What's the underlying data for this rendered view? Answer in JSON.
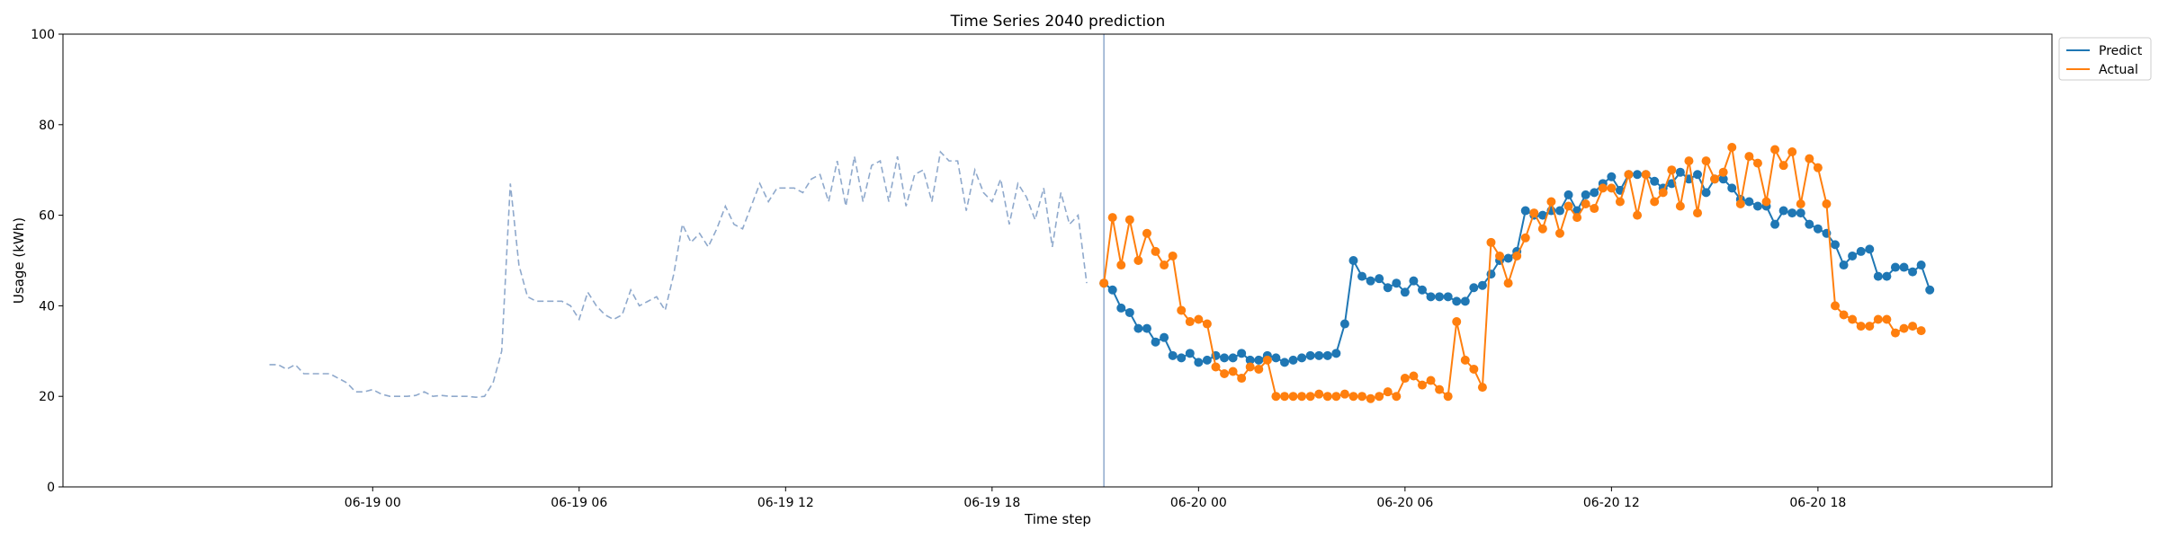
{
  "chart_data": {
    "type": "line",
    "title": "Time Series 2040 prediction",
    "xlabel": "Time step",
    "ylabel": "Usage (kWh)",
    "ylim": [
      0,
      100
    ],
    "yticks": [
      0,
      20,
      40,
      60,
      80,
      100
    ],
    "x_unit": "hours relative to 06-19 00:00",
    "xlim": [
      -9,
      48.8
    ],
    "xticks": [
      {
        "x": 0,
        "label": "06-19 00"
      },
      {
        "x": 6,
        "label": "06-19 06"
      },
      {
        "x": 12,
        "label": "06-19 12"
      },
      {
        "x": 18,
        "label": "06-19 18"
      },
      {
        "x": 24,
        "label": "06-20 00"
      },
      {
        "x": 30,
        "label": "06-20 06"
      },
      {
        "x": 36,
        "label": "06-20 12"
      },
      {
        "x": 42,
        "label": "06-20 18"
      }
    ],
    "forecast_start_x": 21.25,
    "legend": {
      "position": "top-right",
      "entries": [
        "Predict",
        "Actual"
      ]
    },
    "colors": {
      "history": "#8fa9cc",
      "predict": "#1f77b4",
      "actual": "#ff7f0e",
      "divider": "#8fa9cc"
    },
    "history": {
      "x0": -3.0,
      "step": 0.25,
      "values": [
        27,
        27,
        26,
        27,
        25,
        25,
        25,
        25,
        24,
        23,
        21,
        21,
        21.5,
        20.5,
        20,
        20,
        20,
        20.2,
        21,
        20,
        20.2,
        20,
        20,
        20,
        19.8,
        20,
        23,
        30,
        67,
        49,
        42,
        41,
        41,
        41,
        41,
        40,
        37,
        43,
        40,
        38,
        37,
        38,
        43.5,
        40,
        41,
        42,
        39,
        47,
        58,
        54,
        56,
        53,
        57,
        62,
        58,
        57,
        62,
        67,
        63,
        66,
        66,
        66,
        65,
        68,
        69,
        63,
        72,
        62,
        73,
        63,
        71,
        72,
        63,
        73,
        62,
        69,
        70,
        63,
        74,
        72,
        72,
        61,
        70,
        65,
        63,
        68,
        58,
        67,
        64,
        59,
        66,
        53,
        65,
        58,
        60,
        45
      ]
    },
    "series": [
      {
        "name": "Predict",
        "x0": 21.25,
        "step": 0.25,
        "values": [
          45,
          43.5,
          39.5,
          38.5,
          35,
          35,
          32,
          33,
          29,
          28.5,
          29.5,
          27.5,
          28,
          29,
          28.5,
          28.5,
          29.5,
          28,
          28,
          29,
          28.5,
          27.5,
          28,
          28.5,
          29,
          29,
          29,
          29.5,
          36,
          50,
          46.5,
          45.5,
          46,
          44,
          45,
          43,
          45.5,
          43.5,
          42,
          42,
          42,
          41,
          41,
          44,
          44.5,
          47,
          50,
          50.5,
          52,
          61,
          60,
          60,
          61,
          61,
          64.5,
          61,
          64.5,
          65,
          67,
          68.5,
          65.5,
          69,
          69,
          69,
          67.5,
          66,
          67,
          69.5,
          68,
          69,
          65,
          68,
          68,
          66,
          63.5,
          63,
          62,
          62,
          58,
          61,
          60.5,
          60.5,
          58,
          57,
          56,
          53.5,
          49,
          51,
          52,
          52.5,
          46.5,
          46.5,
          48.5,
          48.5,
          47.5,
          49,
          43.5
        ]
      },
      {
        "name": "Actual",
        "x0": 21.25,
        "step": 0.25,
        "values": [
          45,
          59.5,
          49,
          59,
          50,
          56,
          52,
          49,
          51,
          39,
          36.5,
          37,
          36,
          26.5,
          25,
          25.5,
          24,
          26.5,
          26,
          28,
          20,
          20,
          20,
          20,
          20,
          20.5,
          20,
          20,
          20.5,
          20,
          20,
          19.5,
          20,
          21,
          20,
          24,
          24.5,
          22.5,
          23.5,
          21.5,
          20,
          36.5,
          28,
          26,
          22,
          54,
          51,
          45,
          51,
          55,
          60.5,
          57,
          63,
          56,
          62,
          59.5,
          62.5,
          61.5,
          66,
          66,
          63,
          69,
          60,
          69,
          63,
          65,
          70,
          62,
          72,
          60.5,
          72,
          68,
          69.5,
          75,
          62.5,
          73,
          71.5,
          63,
          74.5,
          71,
          74,
          62.5,
          72.5,
          70.5,
          62.5,
          40,
          38,
          37,
          35.5,
          35.5,
          37,
          37,
          34,
          35,
          35.5,
          34.5
        ]
      }
    ]
  }
}
